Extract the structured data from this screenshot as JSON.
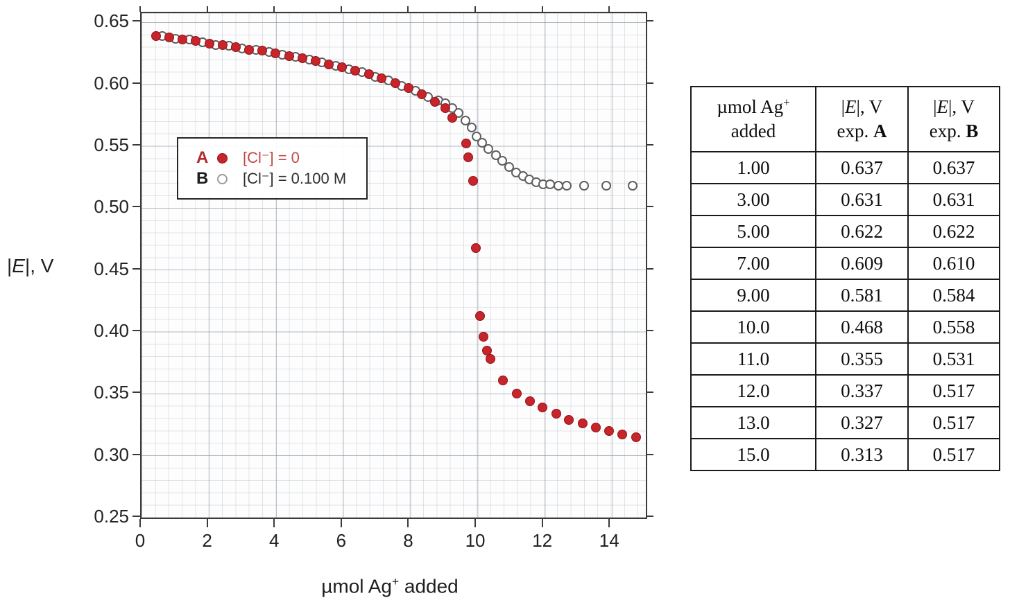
{
  "chart": {
    "ylabel": {
      "pre": "|",
      "italic": "E",
      "post": "|, V"
    },
    "xlabel": {
      "pre": "µmol Ag",
      "sup": "+",
      "post": " added"
    },
    "y_ticks": [
      "0.65",
      "0.60",
      "0.55",
      "0.50",
      "0.45",
      "0.40",
      "0.35",
      "0.30",
      "0.25"
    ],
    "x_ticks": [
      "0",
      "2",
      "4",
      "6",
      "8",
      "10",
      "12",
      "14"
    ],
    "legend": {
      "items": [
        {
          "key": "A",
          "marker": "filled-circle",
          "label": "[Cl⁻] = 0"
        },
        {
          "key": "B",
          "marker": "open-circle",
          "label": "[Cl⁻] = 0.100 M"
        }
      ]
    },
    "colors": {
      "series_a": "#c8242b",
      "series_b_outline": "#5f5f5f",
      "frame": "#3a3a3a"
    }
  },
  "chart_data": {
    "type": "scatter",
    "title": "",
    "xlabel": "µmol Ag⁺ added",
    "ylabel": "|E|, V",
    "xlim": [
      0,
      15
    ],
    "ylim": [
      0.25,
      0.65
    ],
    "x_tick_step": 2,
    "y_tick_step": 0.05,
    "grid": true,
    "legend_position": "upper-left-inside",
    "series": [
      {
        "name": "A",
        "label": "[Cl⁻] = 0",
        "marker": "filled red circle",
        "color": "#c8242b",
        "points": [
          [
            0.43,
            0.639
          ],
          [
            0.83,
            0.638
          ],
          [
            1.22,
            0.636
          ],
          [
            1.62,
            0.635
          ],
          [
            2.02,
            0.633
          ],
          [
            2.42,
            0.632
          ],
          [
            2.81,
            0.63
          ],
          [
            3.21,
            0.628
          ],
          [
            3.6,
            0.627
          ],
          [
            4.0,
            0.625
          ],
          [
            4.4,
            0.623
          ],
          [
            4.8,
            0.621
          ],
          [
            5.19,
            0.619
          ],
          [
            5.59,
            0.616
          ],
          [
            5.98,
            0.614
          ],
          [
            6.38,
            0.611
          ],
          [
            6.78,
            0.608
          ],
          [
            7.17,
            0.605
          ],
          [
            7.57,
            0.601
          ],
          [
            7.97,
            0.597
          ],
          [
            8.36,
            0.592
          ],
          [
            8.76,
            0.586
          ],
          [
            9.06,
            0.581
          ],
          [
            9.27,
            0.573
          ],
          [
            9.68,
            0.552
          ],
          [
            9.76,
            0.541
          ],
          [
            9.9,
            0.522
          ],
          [
            9.97,
            0.468
          ],
          [
            10.1,
            0.413
          ],
          [
            10.21,
            0.396
          ],
          [
            10.31,
            0.385
          ],
          [
            10.42,
            0.378
          ],
          [
            10.79,
            0.361
          ],
          [
            11.2,
            0.35
          ],
          [
            11.59,
            0.344
          ],
          [
            11.97,
            0.339
          ],
          [
            12.38,
            0.334
          ],
          [
            12.75,
            0.329
          ],
          [
            13.17,
            0.326
          ],
          [
            13.56,
            0.323
          ],
          [
            13.95,
            0.32
          ],
          [
            14.35,
            0.317
          ],
          [
            14.76,
            0.315
          ]
        ]
      },
      {
        "name": "B",
        "label": "[Cl⁻] = 0.100 M",
        "marker": "open circle",
        "color": "#5f5f5f",
        "points": [
          [
            0.63,
            0.639
          ],
          [
            1.02,
            0.637
          ],
          [
            1.42,
            0.636
          ],
          [
            1.82,
            0.634
          ],
          [
            2.22,
            0.632
          ],
          [
            2.61,
            0.631
          ],
          [
            3.01,
            0.629
          ],
          [
            3.41,
            0.628
          ],
          [
            3.8,
            0.626
          ],
          [
            4.2,
            0.624
          ],
          [
            4.6,
            0.622
          ],
          [
            5.0,
            0.62
          ],
          [
            5.39,
            0.618
          ],
          [
            5.79,
            0.615
          ],
          [
            6.18,
            0.612
          ],
          [
            6.58,
            0.61
          ],
          [
            6.98,
            0.606
          ],
          [
            7.37,
            0.603
          ],
          [
            7.77,
            0.599
          ],
          [
            8.17,
            0.595
          ],
          [
            8.56,
            0.59
          ],
          [
            8.86,
            0.587
          ],
          [
            9.07,
            0.585
          ],
          [
            9.27,
            0.581
          ],
          [
            9.47,
            0.577
          ],
          [
            9.67,
            0.571
          ],
          [
            9.86,
            0.565
          ],
          [
            9.99,
            0.558
          ],
          [
            10.16,
            0.553
          ],
          [
            10.36,
            0.548
          ],
          [
            10.57,
            0.543
          ],
          [
            10.77,
            0.538
          ],
          [
            10.97,
            0.533
          ],
          [
            11.17,
            0.529
          ],
          [
            11.38,
            0.526
          ],
          [
            11.58,
            0.523
          ],
          [
            11.78,
            0.521
          ],
          [
            11.98,
            0.519
          ],
          [
            12.19,
            0.519
          ],
          [
            12.44,
            0.518
          ],
          [
            12.69,
            0.518
          ],
          [
            13.21,
            0.518
          ],
          [
            13.87,
            0.518
          ],
          [
            14.66,
            0.518
          ]
        ]
      }
    ]
  },
  "table": {
    "headers": [
      {
        "line1": [
          {
            "t": "µmol Ag"
          },
          {
            "t": "+",
            "sup": true
          }
        ],
        "line2": [
          {
            "t": "added"
          }
        ]
      },
      {
        "line1": [
          {
            "t": "|"
          },
          {
            "t": "E",
            "i": true
          },
          {
            "t": "|, V"
          }
        ],
        "line2": [
          {
            "t": "exp. "
          },
          {
            "t": "A",
            "b": true
          }
        ]
      },
      {
        "line1": [
          {
            "t": "|"
          },
          {
            "t": "E",
            "i": true
          },
          {
            "t": "|, V"
          }
        ],
        "line2": [
          {
            "t": "exp. "
          },
          {
            "t": "B",
            "b": true
          }
        ]
      }
    ],
    "rows": [
      [
        "1.00",
        "0.637",
        "0.637"
      ],
      [
        "3.00",
        "0.631",
        "0.631"
      ],
      [
        "5.00",
        "0.622",
        "0.622"
      ],
      [
        "7.00",
        "0.609",
        "0.610"
      ],
      [
        "9.00",
        "0.581",
        "0.584"
      ],
      [
        "10.0",
        "0.468",
        "0.558"
      ],
      [
        "11.0",
        "0.355",
        "0.531"
      ],
      [
        "12.0",
        "0.337",
        "0.517"
      ],
      [
        "13.0",
        "0.327",
        "0.517"
      ],
      [
        "15.0",
        "0.313",
        "0.517"
      ]
    ]
  }
}
